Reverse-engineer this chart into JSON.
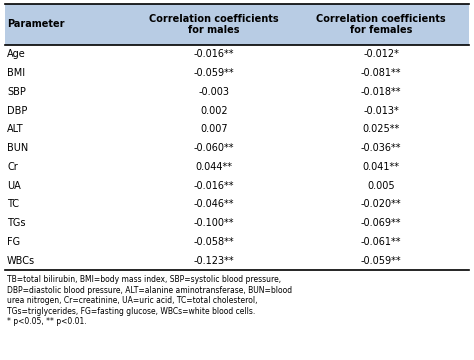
{
  "parameters": [
    "Age",
    "BMI",
    "SBP",
    "DBP",
    "ALT",
    "BUN",
    "Cr",
    "UA",
    "TC",
    "TGs",
    "FG",
    "WBCs"
  ],
  "males": [
    "-0.016**",
    "-0.059**",
    "-0.003",
    "0.002",
    "0.007",
    "-0.060**",
    "0.044**",
    "-0.016**",
    "-0.046**",
    "-0.100**",
    "-0.058**",
    "-0.123**"
  ],
  "females": [
    "-0.012*",
    "-0.081**",
    "-0.018**",
    "-0.013*",
    "0.025**",
    "-0.036**",
    "0.041**",
    "0.005",
    "-0.020**",
    "-0.069**",
    "-0.061**",
    "-0.059**"
  ],
  "header_bg": "#b8cce4",
  "header_text_color": "#000000",
  "body_bg": "#ffffff",
  "body_text_color": "#000000",
  "col1_header": "Parameter",
  "col2_header": "Correlation coefficients\nfor males",
  "col3_header": "Correlation coefficients\nfor females",
  "footnote": "TB=total bilirubin, BMI=body mass index, SBP=systolic blood pressure,\nDBP=diastolic blood pressure, ALT=alanine aminotransferase, BUN=blood\nurea nitrogen, Cr=creatinine, UA=uric acid, TC=total cholesterol,\nTGs=triglycerides, FG=fasting glucose, WBCs=white blood cells.\n* p<0.05, ** p<0.01."
}
